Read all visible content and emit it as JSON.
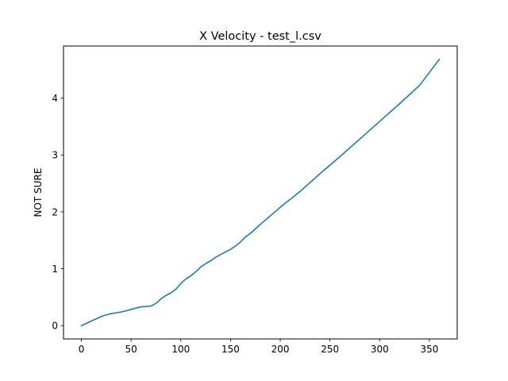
{
  "chart_data": {
    "type": "line",
    "title": "X Velocity - test_l.csv",
    "xlabel": "",
    "ylabel": "NOT SURE",
    "xlim": [
      -18,
      378
    ],
    "ylim": [
      -0.234,
      4.915
    ],
    "xticks": [
      0,
      50,
      100,
      150,
      200,
      250,
      300,
      350
    ],
    "yticks": [
      0,
      1,
      2,
      3,
      4
    ],
    "grid": false,
    "legend": "none",
    "series": [
      {
        "color": "#1f77b4",
        "x": [
          0,
          5,
          10,
          15,
          20,
          25,
          30,
          35,
          40,
          45,
          50,
          55,
          60,
          65,
          70,
          75,
          80,
          85,
          90,
          95,
          100,
          105,
          110,
          115,
          120,
          125,
          130,
          135,
          140,
          145,
          150,
          155,
          160,
          165,
          170,
          175,
          180,
          190,
          200,
          220,
          240,
          260,
          280,
          300,
          320,
          340,
          360
        ],
        "y": [
          0.0,
          0.04,
          0.08,
          0.12,
          0.16,
          0.19,
          0.21,
          0.225,
          0.24,
          0.26,
          0.285,
          0.31,
          0.33,
          0.335,
          0.345,
          0.39,
          0.47,
          0.53,
          0.575,
          0.64,
          0.74,
          0.82,
          0.875,
          0.945,
          1.03,
          1.09,
          1.14,
          1.2,
          1.25,
          1.295,
          1.34,
          1.4,
          1.47,
          1.56,
          1.62,
          1.7,
          1.78,
          1.93,
          2.08,
          2.36,
          2.67,
          2.97,
          3.28,
          3.59,
          3.9,
          4.22,
          4.68
        ]
      }
    ]
  }
}
